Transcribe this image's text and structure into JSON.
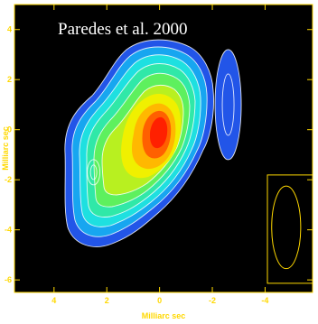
{
  "chart_data": {
    "type": "contour",
    "title": "Paredes et al. 2000",
    "xlabel": "Milliarc sec",
    "ylabel": "Milliarc sec",
    "xlim": [
      5.5,
      -5.8
    ],
    "ylim": [
      -6.5,
      5.0
    ],
    "x_reversed": true,
    "x_ticks": [
      4,
      2,
      0,
      -2,
      -4
    ],
    "y_ticks": [
      4,
      2,
      0,
      -2,
      -4,
      -6
    ],
    "x_tick_labels": [
      "4",
      "2",
      "0",
      "-2",
      "-4"
    ],
    "y_tick_labels": [
      "4",
      "2",
      "0",
      "-2",
      "-4",
      "-6"
    ],
    "colormap": [
      "#2255e8",
      "#17a6f0",
      "#1ee0e0",
      "#30e8a8",
      "#5ef05e",
      "#b8f020",
      "#f0f000",
      "#ffb800",
      "#ff6000",
      "#ff2000"
    ],
    "line_color": "#ffffff",
    "frame_color": "#ffd800",
    "background": "#000000",
    "components": [
      {
        "name": "core",
        "x": 0.1,
        "y": 0.2
      },
      {
        "name": "secondary-peak",
        "x": 2.5,
        "y": -1.7
      },
      {
        "name": "outer-component",
        "x": -2.6,
        "y": 1.0
      }
    ],
    "beam": {
      "major_mas": 3.3,
      "minor_mas": 1.1,
      "pa_deg": 0,
      "x": -4.8,
      "y": -3.9
    }
  }
}
